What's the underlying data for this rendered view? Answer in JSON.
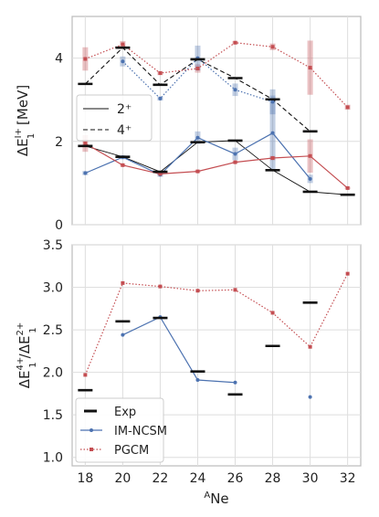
{
  "chart_data": [
    {
      "type": "line",
      "panel": "top",
      "ylabel": "ΔE_1^{I+} [MeV]",
      "ylim": [
        0,
        5.0
      ],
      "yticks": [
        "0",
        "2",
        "4"
      ],
      "xlim": [
        17.3,
        32.7
      ],
      "legend": {
        "position": "middle-left",
        "entries": [
          {
            "label": "2⁺",
            "style": "solid"
          },
          {
            "label": "4⁺",
            "style": "dashed"
          }
        ]
      },
      "exp_2plus": [
        [
          18,
          1.89
        ],
        [
          20,
          1.63
        ],
        [
          22,
          1.27
        ],
        [
          24,
          1.98
        ],
        [
          26,
          2.02
        ],
        [
          28,
          1.31
        ],
        [
          30,
          0.79
        ],
        [
          32,
          0.72
        ]
      ],
      "exp_4plus": [
        [
          18,
          3.38
        ],
        [
          20,
          4.25
        ],
        [
          22,
          3.36
        ],
        [
          24,
          3.97
        ],
        [
          26,
          3.52
        ],
        [
          28,
          3.01
        ],
        [
          30,
          2.24
        ]
      ],
      "imncsm_2plus": [
        [
          18,
          1.24
        ],
        [
          20,
          1.62
        ],
        [
          22,
          1.2
        ],
        [
          24,
          2.09
        ],
        [
          26,
          1.7
        ],
        [
          28,
          2.2
        ],
        [
          30,
          1.1
        ]
      ],
      "imncsm_2plus_err": [
        [
          18,
          0.05
        ],
        [
          20,
          0.05
        ],
        [
          22,
          0.05
        ],
        [
          24,
          0.15
        ],
        [
          26,
          0.15
        ],
        [
          28,
          0.9
        ],
        [
          30,
          0.1
        ]
      ],
      "imncsm_4plus": [
        [
          20,
          3.92
        ],
        [
          22,
          3.03
        ],
        [
          24,
          4.0
        ],
        [
          26,
          3.24
        ],
        [
          28,
          2.95
        ]
      ],
      "imncsm_4plus_err": [
        [
          20,
          0.12
        ],
        [
          22,
          0.05
        ],
        [
          24,
          0.3
        ],
        [
          26,
          0.15
        ],
        [
          28,
          0.3
        ]
      ],
      "pgcm_2plus": [
        [
          18,
          1.95
        ],
        [
          20,
          1.43
        ],
        [
          22,
          1.22
        ],
        [
          24,
          1.28
        ],
        [
          26,
          1.5
        ],
        [
          28,
          1.6
        ],
        [
          30,
          1.65
        ],
        [
          32,
          0.88
        ]
      ],
      "pgcm_2plus_err": [
        [
          18,
          0.2
        ],
        [
          20,
          0.03
        ],
        [
          22,
          0.03
        ],
        [
          24,
          0.03
        ],
        [
          26,
          0.03
        ],
        [
          28,
          0.05
        ],
        [
          30,
          0.4
        ],
        [
          32,
          0.03
        ]
      ],
      "pgcm_4plus": [
        [
          18,
          3.98
        ],
        [
          20,
          4.33
        ],
        [
          22,
          3.64
        ],
        [
          24,
          3.75
        ],
        [
          26,
          4.37
        ],
        [
          28,
          4.27
        ],
        [
          30,
          3.77
        ],
        [
          32,
          2.82
        ]
      ],
      "pgcm_4plus_err": [
        [
          18,
          0.28
        ],
        [
          20,
          0.08
        ],
        [
          22,
          0.05
        ],
        [
          24,
          0.1
        ],
        [
          26,
          0.04
        ],
        [
          28,
          0.08
        ],
        [
          30,
          0.65
        ],
        [
          32,
          0.06
        ]
      ]
    },
    {
      "type": "line",
      "panel": "bottom",
      "xlabel": "^A Ne",
      "ylabel": "ΔE_1^{4+}/ΔE_1^{2+}",
      "ylim": [
        0.9,
        3.5
      ],
      "yticks": [
        "1.0",
        "1.5",
        "2.0",
        "2.5",
        "3.0",
        "3.5"
      ],
      "xticks": [
        "18",
        "20",
        "22",
        "24",
        "26",
        "28",
        "30",
        "32"
      ],
      "xlim": [
        17.3,
        32.7
      ],
      "legend": {
        "position": "bottom-left",
        "entries": [
          {
            "label": "Exp",
            "style": "bar"
          },
          {
            "label": "IM-NCSM",
            "style": "solid-dot"
          },
          {
            "label": "PGCM",
            "style": "dotted-square"
          }
        ]
      },
      "series": [
        {
          "name": "Exp",
          "points": [
            [
              18,
              1.79
            ],
            [
              20,
              2.6
            ],
            [
              22,
              2.64
            ],
            [
              24,
              2.01
            ],
            [
              26,
              1.74
            ],
            [
              28,
              2.31
            ],
            [
              30,
              2.82
            ]
          ]
        },
        {
          "name": "IM-NCSM",
          "points": [
            [
              20,
              2.44
            ],
            [
              22,
              2.65
            ],
            [
              24,
              1.91
            ],
            [
              26,
              1.88
            ]
          ],
          "extra_points": [
            [
              30,
              1.71
            ]
          ]
        },
        {
          "name": "PGCM",
          "points": [
            [
              18,
              1.97
            ],
            [
              20,
              3.05
            ],
            [
              22,
              3.01
            ],
            [
              24,
              2.96
            ],
            [
              26,
              2.97
            ],
            [
              28,
              2.7
            ],
            [
              30,
              2.3
            ],
            [
              32,
              3.16
            ]
          ]
        }
      ]
    }
  ],
  "colors": {
    "imncsm": "#4c72b0",
    "pgcm": "#c44e52",
    "exp": "#111111",
    "grid": "#dedede",
    "frame": "#bbbbbb"
  }
}
